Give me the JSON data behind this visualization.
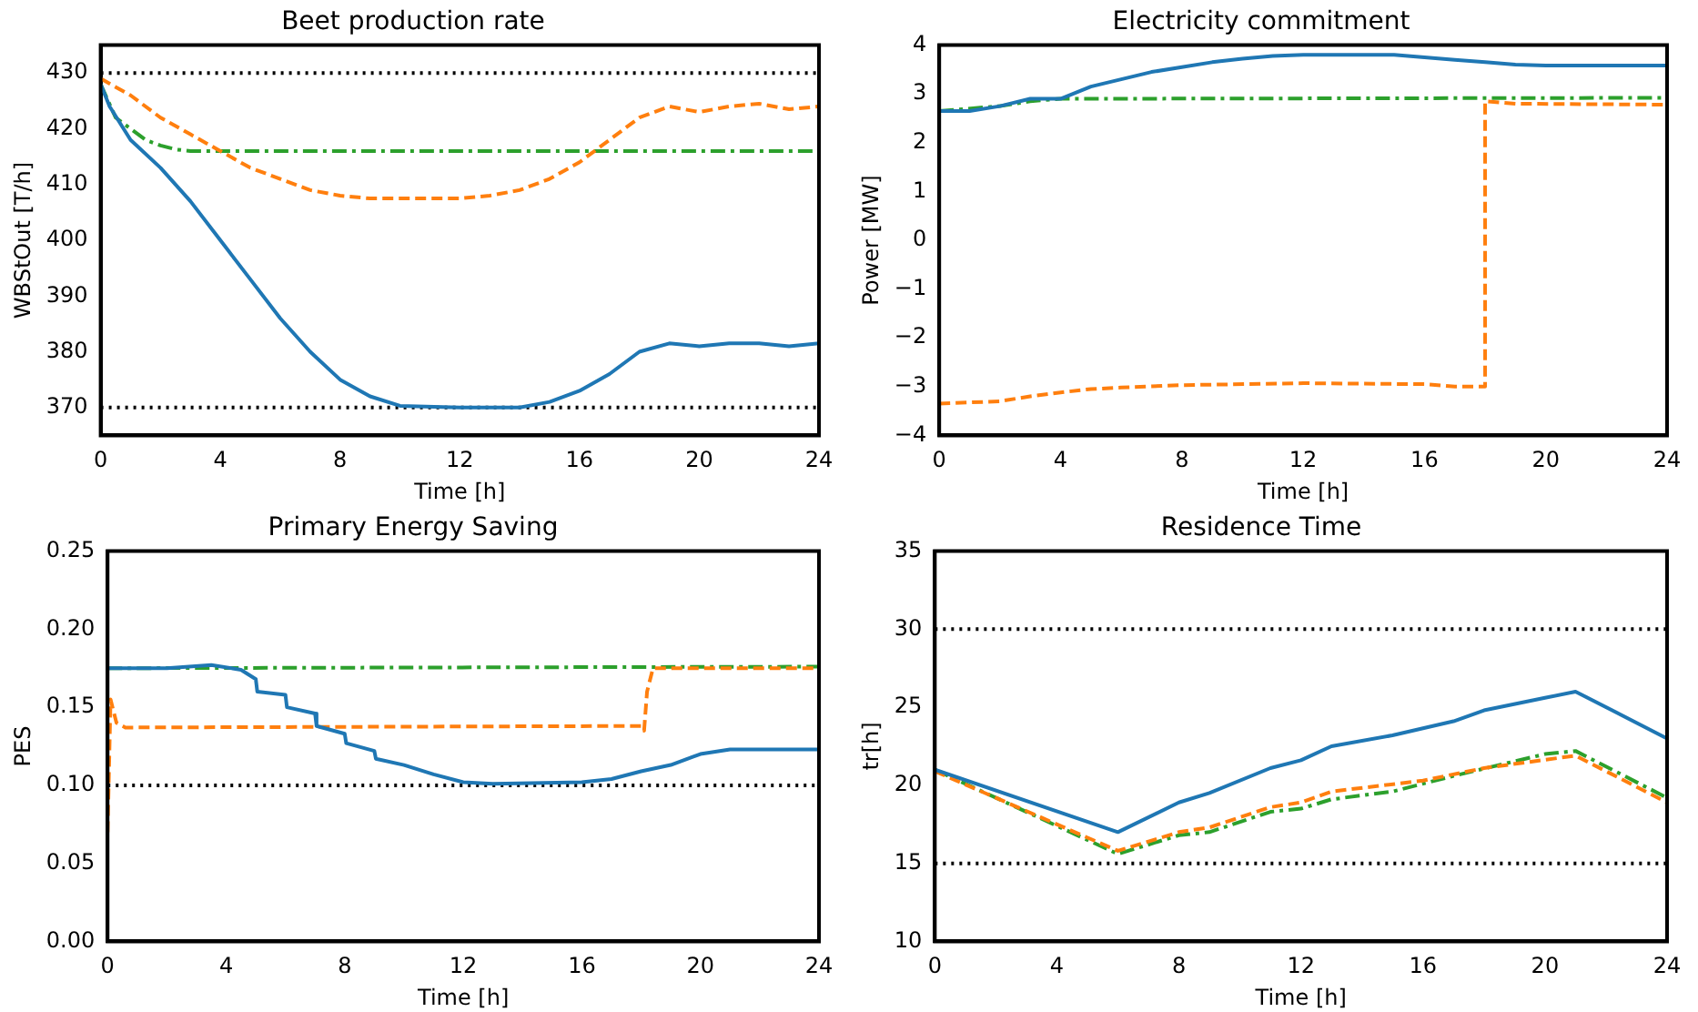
{
  "chart_data": [
    {
      "type": "line",
      "title": "Beet production rate",
      "xlabel": "Time [h]",
      "ylabel": "WBStOut [T/h]",
      "xlim": [
        0,
        24
      ],
      "xticks": [
        0,
        4,
        8,
        12,
        16,
        20,
        24
      ],
      "ylim": [
        365,
        435
      ],
      "yticks": [
        370,
        380,
        390,
        400,
        410,
        420,
        430
      ],
      "grid": false,
      "legend": false,
      "marker": "none",
      "ref_lines": [
        {
          "axis": "y",
          "value": 430,
          "color": "#000000",
          "line_style": "dotted"
        },
        {
          "axis": "y",
          "value": 370,
          "color": "#000000",
          "line_style": "dotted"
        }
      ],
      "series": [
        {
          "color": "#1f77b4",
          "line_style": "solid",
          "x": [
            0,
            0.3,
            1,
            2,
            3,
            4,
            5,
            6,
            7,
            8,
            9,
            10,
            12,
            14,
            15,
            16,
            17,
            18,
            19,
            20,
            21,
            22,
            23,
            24
          ],
          "values": [
            428,
            424,
            418,
            413,
            407,
            400,
            393,
            386,
            380,
            375,
            372,
            370.3,
            370,
            370,
            371,
            373,
            376,
            380,
            381.5,
            381,
            381.5,
            381.5,
            381,
            381.5
          ]
        },
        {
          "color": "#ff7f0e",
          "line_style": "dashed",
          "x": [
            0,
            1,
            2,
            3,
            4,
            5,
            6,
            7,
            8,
            9,
            12,
            13,
            14,
            15,
            16,
            17,
            18,
            19,
            20,
            21,
            22,
            23,
            24
          ],
          "values": [
            429,
            426,
            422,
            419,
            416,
            413,
            411,
            409,
            408,
            407.5,
            407.5,
            408,
            409,
            411,
            414,
            418,
            422,
            424,
            423,
            424,
            424.5,
            423.5,
            424
          ]
        },
        {
          "color": "#2ca02c",
          "line_style": "dashdot",
          "x": [
            0,
            0.5,
            1,
            1.5,
            2,
            2.5,
            3,
            24
          ],
          "values": [
            428,
            422,
            420,
            418,
            417,
            416.3,
            416,
            416
          ]
        }
      ]
    },
    {
      "type": "line",
      "title": "Electricity commitment",
      "xlabel": "Time [h]",
      "ylabel": "Power [MW]",
      "xlim": [
        0,
        24
      ],
      "xticks": [
        0,
        4,
        8,
        12,
        16,
        20,
        24
      ],
      "ylim": [
        -4,
        4
      ],
      "yticks": [
        -4,
        -3,
        -2,
        -1,
        0,
        1,
        2,
        3,
        4
      ],
      "grid": false,
      "legend": false,
      "marker": "none",
      "series": [
        {
          "color": "#1f77b4",
          "line_style": "solid",
          "x": [
            0,
            1,
            2,
            3,
            4,
            5,
            6,
            7,
            8,
            9,
            10,
            11,
            12,
            15,
            16,
            17,
            18,
            19,
            20,
            24
          ],
          "values": [
            2.65,
            2.65,
            2.75,
            2.9,
            2.9,
            3.15,
            3.3,
            3.45,
            3.55,
            3.65,
            3.72,
            3.78,
            3.8,
            3.8,
            3.75,
            3.7,
            3.65,
            3.6,
            3.58,
            3.58
          ]
        },
        {
          "color": "#ff7f0e",
          "line_style": "dashed",
          "x": [
            0,
            2,
            3,
            4,
            5,
            6,
            8,
            12,
            16,
            17,
            18,
            18,
            19,
            24
          ],
          "values": [
            -3.35,
            -3.3,
            -3.2,
            -3.12,
            -3.05,
            -3.02,
            -2.97,
            -2.93,
            -2.95,
            -3,
            -3,
            2.85,
            2.8,
            2.78
          ]
        },
        {
          "color": "#2ca02c",
          "line_style": "dashdot",
          "x": [
            0,
            2,
            3,
            4,
            24
          ],
          "values": [
            2.65,
            2.75,
            2.85,
            2.9,
            2.92
          ]
        }
      ]
    },
    {
      "type": "line",
      "title": "Primary Energy Saving",
      "xlabel": "Time [h]",
      "ylabel": "PES",
      "xlim": [
        0,
        24
      ],
      "xticks": [
        0,
        4,
        8,
        12,
        16,
        20,
        24
      ],
      "ylim": [
        0,
        0.25
      ],
      "yticks": [
        {
          "value": 0,
          "label": "0.00"
        },
        {
          "value": 0.05,
          "label": "0.05"
        },
        {
          "value": 0.1,
          "label": "0.10"
        },
        {
          "value": 0.15,
          "label": "0.15"
        },
        {
          "value": 0.2,
          "label": "0.20"
        },
        {
          "value": 0.25,
          "label": "0.25"
        }
      ],
      "grid": false,
      "legend": false,
      "marker": "none",
      "ref_lines": [
        {
          "axis": "y",
          "value": 0.1,
          "color": "#000000",
          "line_style": "dotted"
        }
      ],
      "series": [
        {
          "color": "#1f77b4",
          "line_style": "solid",
          "x": [
            0,
            2,
            3.5,
            4.5,
            5,
            5.05,
            6,
            6.05,
            7,
            7.05,
            8,
            8.05,
            9,
            9.05,
            10,
            11,
            12,
            13,
            16,
            17,
            18,
            19,
            20,
            21,
            24
          ],
          "values": [
            0.175,
            0.175,
            0.177,
            0.174,
            0.168,
            0.16,
            0.158,
            0.15,
            0.146,
            0.138,
            0.133,
            0.127,
            0.122,
            0.117,
            0.113,
            0.107,
            0.102,
            0.101,
            0.102,
            0.104,
            0.109,
            0.113,
            0.12,
            0.123,
            0.123
          ]
        },
        {
          "color": "#ff7f0e",
          "line_style": "dashed",
          "x": [
            0,
            0.1,
            0.3,
            0.6,
            18,
            18.1,
            18.2,
            18.4,
            24
          ],
          "values": [
            0.07,
            0.155,
            0.14,
            0.137,
            0.138,
            0.135,
            0.16,
            0.175,
            0.175
          ]
        },
        {
          "color": "#2ca02c",
          "line_style": "dashdot",
          "x": [
            0,
            24
          ],
          "values": [
            0.175,
            0.176
          ]
        }
      ]
    },
    {
      "type": "line",
      "title": "Residence Time",
      "xlabel": "Time [h]",
      "ylabel": "tr[h]",
      "xlim": [
        0,
        24
      ],
      "xticks": [
        0,
        4,
        8,
        12,
        16,
        20,
        24
      ],
      "ylim": [
        10,
        35
      ],
      "yticks": [
        10,
        15,
        20,
        25,
        30,
        35
      ],
      "grid": false,
      "legend": false,
      "marker": "none",
      "ref_lines": [
        {
          "axis": "y",
          "value": 30,
          "color": "#000000",
          "line_style": "dotted"
        },
        {
          "axis": "y",
          "value": 15,
          "color": "#000000",
          "line_style": "dotted"
        }
      ],
      "series": [
        {
          "color": "#1f77b4",
          "line_style": "solid",
          "x": [
            0,
            6,
            8,
            9,
            11,
            12,
            13,
            15,
            17,
            18,
            20,
            21,
            24
          ],
          "values": [
            21,
            17,
            18.9,
            19.5,
            21.1,
            21.6,
            22.5,
            23.2,
            24.1,
            24.8,
            25.6,
            26,
            23
          ]
        },
        {
          "color": "#ff7f0e",
          "line_style": "dashed",
          "x": [
            0,
            6,
            8,
            9,
            11,
            12,
            13,
            16,
            18,
            21,
            24
          ],
          "values": [
            20.9,
            15.8,
            17,
            17.3,
            18.6,
            18.9,
            19.6,
            20.3,
            21.1,
            21.9,
            18.9
          ]
        },
        {
          "color": "#2ca02c",
          "line_style": "dashdot",
          "x": [
            0,
            6,
            8,
            9,
            11,
            12,
            13,
            15,
            17,
            20,
            21,
            24
          ],
          "values": [
            21,
            15.6,
            16.8,
            17,
            18.3,
            18.5,
            19.1,
            19.6,
            20.6,
            22,
            22.2,
            19.2
          ]
        }
      ]
    }
  ]
}
